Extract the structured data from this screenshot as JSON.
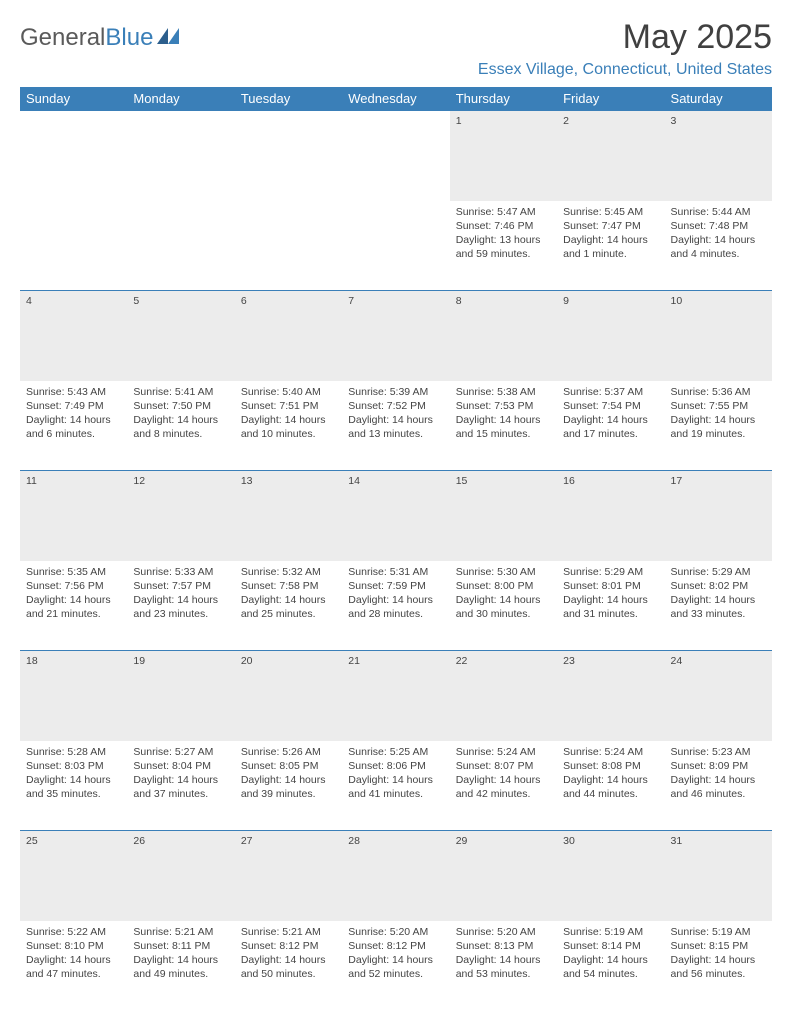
{
  "logo": {
    "text1": "General",
    "text2": "Blue"
  },
  "title": "May 2025",
  "location": "Essex Village, Connecticut, United States",
  "colors": {
    "header_bg": "#3a7fb8",
    "header_text": "#ffffff",
    "daynum_bg": "#ececec",
    "border": "#3a7fb8",
    "text": "#444444"
  },
  "daysOfWeek": [
    "Sunday",
    "Monday",
    "Tuesday",
    "Wednesday",
    "Thursday",
    "Friday",
    "Saturday"
  ],
  "weeks": [
    {
      "nums": [
        "",
        "",
        "",
        "",
        "1",
        "2",
        "3"
      ],
      "cells": [
        null,
        null,
        null,
        null,
        {
          "sunrise": "5:47 AM",
          "sunset": "7:46 PM",
          "daylight": "13 hours and 59 minutes."
        },
        {
          "sunrise": "5:45 AM",
          "sunset": "7:47 PM",
          "daylight": "14 hours and 1 minute."
        },
        {
          "sunrise": "5:44 AM",
          "sunset": "7:48 PM",
          "daylight": "14 hours and 4 minutes."
        }
      ]
    },
    {
      "nums": [
        "4",
        "5",
        "6",
        "7",
        "8",
        "9",
        "10"
      ],
      "cells": [
        {
          "sunrise": "5:43 AM",
          "sunset": "7:49 PM",
          "daylight": "14 hours and 6 minutes."
        },
        {
          "sunrise": "5:41 AM",
          "sunset": "7:50 PM",
          "daylight": "14 hours and 8 minutes."
        },
        {
          "sunrise": "5:40 AM",
          "sunset": "7:51 PM",
          "daylight": "14 hours and 10 minutes."
        },
        {
          "sunrise": "5:39 AM",
          "sunset": "7:52 PM",
          "daylight": "14 hours and 13 minutes."
        },
        {
          "sunrise": "5:38 AM",
          "sunset": "7:53 PM",
          "daylight": "14 hours and 15 minutes."
        },
        {
          "sunrise": "5:37 AM",
          "sunset": "7:54 PM",
          "daylight": "14 hours and 17 minutes."
        },
        {
          "sunrise": "5:36 AM",
          "sunset": "7:55 PM",
          "daylight": "14 hours and 19 minutes."
        }
      ]
    },
    {
      "nums": [
        "11",
        "12",
        "13",
        "14",
        "15",
        "16",
        "17"
      ],
      "cells": [
        {
          "sunrise": "5:35 AM",
          "sunset": "7:56 PM",
          "daylight": "14 hours and 21 minutes."
        },
        {
          "sunrise": "5:33 AM",
          "sunset": "7:57 PM",
          "daylight": "14 hours and 23 minutes."
        },
        {
          "sunrise": "5:32 AM",
          "sunset": "7:58 PM",
          "daylight": "14 hours and 25 minutes."
        },
        {
          "sunrise": "5:31 AM",
          "sunset": "7:59 PM",
          "daylight": "14 hours and 28 minutes."
        },
        {
          "sunrise": "5:30 AM",
          "sunset": "8:00 PM",
          "daylight": "14 hours and 30 minutes."
        },
        {
          "sunrise": "5:29 AM",
          "sunset": "8:01 PM",
          "daylight": "14 hours and 31 minutes."
        },
        {
          "sunrise": "5:29 AM",
          "sunset": "8:02 PM",
          "daylight": "14 hours and 33 minutes."
        }
      ]
    },
    {
      "nums": [
        "18",
        "19",
        "20",
        "21",
        "22",
        "23",
        "24"
      ],
      "cells": [
        {
          "sunrise": "5:28 AM",
          "sunset": "8:03 PM",
          "daylight": "14 hours and 35 minutes."
        },
        {
          "sunrise": "5:27 AM",
          "sunset": "8:04 PM",
          "daylight": "14 hours and 37 minutes."
        },
        {
          "sunrise": "5:26 AM",
          "sunset": "8:05 PM",
          "daylight": "14 hours and 39 minutes."
        },
        {
          "sunrise": "5:25 AM",
          "sunset": "8:06 PM",
          "daylight": "14 hours and 41 minutes."
        },
        {
          "sunrise": "5:24 AM",
          "sunset": "8:07 PM",
          "daylight": "14 hours and 42 minutes."
        },
        {
          "sunrise": "5:24 AM",
          "sunset": "8:08 PM",
          "daylight": "14 hours and 44 minutes."
        },
        {
          "sunrise": "5:23 AM",
          "sunset": "8:09 PM",
          "daylight": "14 hours and 46 minutes."
        }
      ]
    },
    {
      "nums": [
        "25",
        "26",
        "27",
        "28",
        "29",
        "30",
        "31"
      ],
      "cells": [
        {
          "sunrise": "5:22 AM",
          "sunset": "8:10 PM",
          "daylight": "14 hours and 47 minutes."
        },
        {
          "sunrise": "5:21 AM",
          "sunset": "8:11 PM",
          "daylight": "14 hours and 49 minutes."
        },
        {
          "sunrise": "5:21 AM",
          "sunset": "8:12 PM",
          "daylight": "14 hours and 50 minutes."
        },
        {
          "sunrise": "5:20 AM",
          "sunset": "8:12 PM",
          "daylight": "14 hours and 52 minutes."
        },
        {
          "sunrise": "5:20 AM",
          "sunset": "8:13 PM",
          "daylight": "14 hours and 53 minutes."
        },
        {
          "sunrise": "5:19 AM",
          "sunset": "8:14 PM",
          "daylight": "14 hours and 54 minutes."
        },
        {
          "sunrise": "5:19 AM",
          "sunset": "8:15 PM",
          "daylight": "14 hours and 56 minutes."
        }
      ]
    }
  ],
  "labels": {
    "sunrise": "Sunrise: ",
    "sunset": "Sunset: ",
    "daylight": "Daylight: "
  }
}
